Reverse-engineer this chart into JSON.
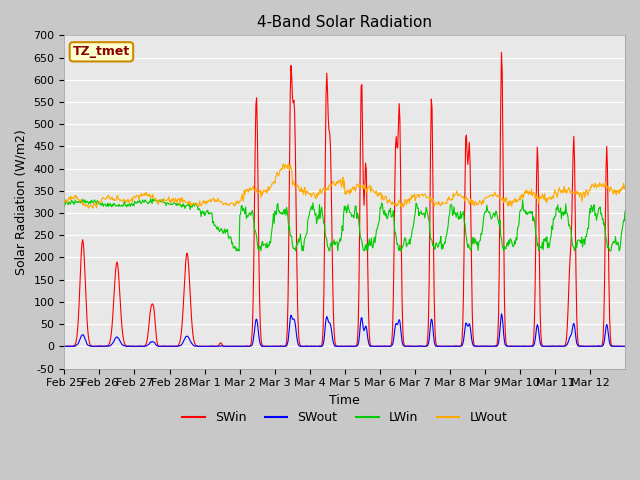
{
  "title": "4-Band Solar Radiation",
  "xlabel": "Time",
  "ylabel": "Solar Radiation (W/m2)",
  "annotation": "TZ_tmet",
  "ylim": [
    -50,
    700
  ],
  "legend_labels": [
    "SWin",
    "SWout",
    "LWin",
    "LWout"
  ],
  "legend_colors": [
    "#ff0000",
    "#0000ff",
    "#00cc00",
    "#ffaa00"
  ],
  "x_tick_labels": [
    "Feb 25",
    "Feb 26",
    "Feb 27",
    "Feb 28",
    "Mar 1",
    "Mar 2",
    "Mar 3",
    "Mar 4",
    "Mar 5",
    "Mar 6",
    "Mar 7",
    "Mar 8",
    "Mar 9",
    "Mar 10",
    "Mar 11",
    "Mar 12"
  ],
  "yticks": [
    -50,
    0,
    50,
    100,
    150,
    200,
    250,
    300,
    350,
    400,
    450,
    500,
    550,
    600,
    650,
    700
  ],
  "figsize": [
    6.4,
    4.8
  ],
  "dpi": 100,
  "title_fontsize": 11,
  "label_fontsize": 9,
  "tick_fontsize": 8,
  "linewidth": 0.8,
  "fig_facecolor": "#c8c8c8",
  "ax_facecolor": "#e8e8e8",
  "grid_color": "#ffffff",
  "SWin_color": "#ff0000",
  "SWout_color": "#0000ff",
  "LWin_color": "#00cc00",
  "LWout_color": "#ffaa00"
}
